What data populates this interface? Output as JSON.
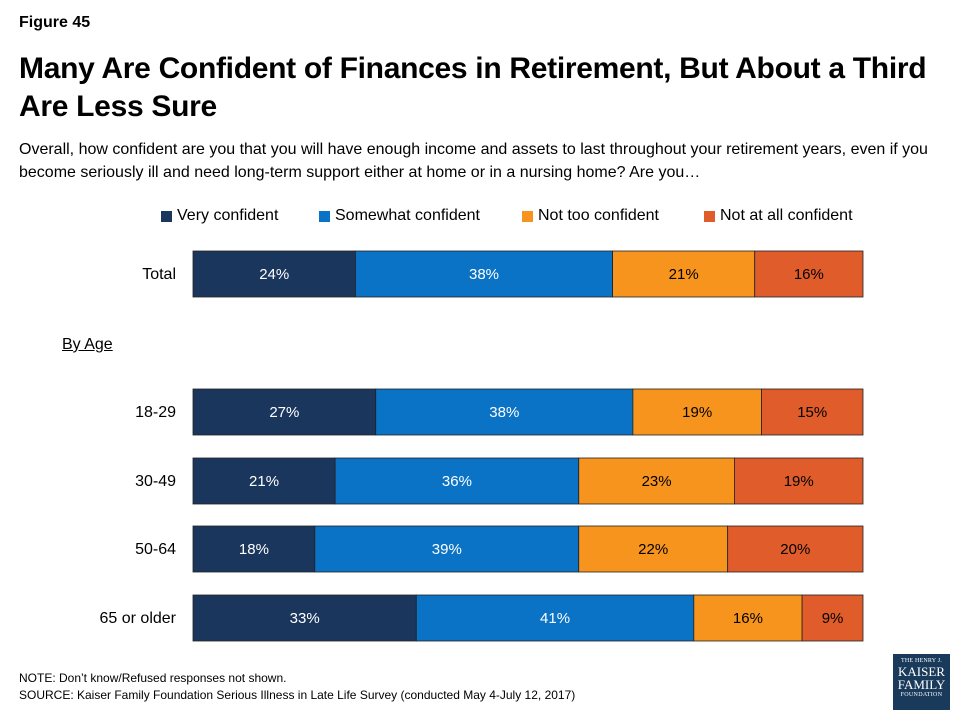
{
  "figure_label": "Figure 45",
  "title": "Many Are Confident of Finances in Retirement, But About a Third Are Less Sure",
  "subtitle": "Overall, how confident are you that you will have enough income and assets to last throughout your retirement years, even if you become seriously ill and need long-term support either at home or in a nursing home? Are you…",
  "section_label": "By Age",
  "note": "NOTE: Don’t know/Refused responses not shown.",
  "source": "SOURCE: Kaiser Family Foundation Serious Illness in Late Life Survey (conducted May 4-July 12, 2017)",
  "logo": {
    "line1": "THE HENRY J.",
    "line2": "KAISER",
    "line3": "FAMILY",
    "line4": "FOUNDATION"
  },
  "colors": {
    "very": "#1b365d",
    "somewhat": "#0a73c6",
    "not_too": "#f7941d",
    "not_at_all": "#e05c2a",
    "logo_bg": "#1a3a5c"
  },
  "chart_data": {
    "type": "bar",
    "orientation": "horizontal",
    "stacked": true,
    "categories": [
      "Total",
      "18-29",
      "30-49",
      "50-64",
      "65 or older"
    ],
    "series": [
      {
        "name": "Very confident",
        "values": [
          24,
          27,
          21,
          18,
          33
        ],
        "labels": [
          "24%",
          "27%",
          "21%",
          "18%",
          "33%"
        ],
        "color": "#1b365d"
      },
      {
        "name": "Somewhat confident",
        "values": [
          38,
          38,
          36,
          39,
          41
        ],
        "labels": [
          "38%",
          "38%",
          "36%",
          "39%",
          "41%"
        ],
        "color": "#0a73c6"
      },
      {
        "name": "Not too confident",
        "values": [
          21,
          19,
          23,
          22,
          16
        ],
        "labels": [
          "21%",
          "19%",
          "23%",
          "22%",
          "16%"
        ],
        "color": "#f7941d"
      },
      {
        "name": "Not at all confident",
        "values": [
          16,
          15,
          19,
          20,
          9
        ],
        "labels": [
          "16%",
          "15%",
          "19%",
          "20%",
          "9%"
        ],
        "color": "#e05c2a"
      }
    ],
    "legend_position": "top",
    "grid": false,
    "value_labels": true
  }
}
